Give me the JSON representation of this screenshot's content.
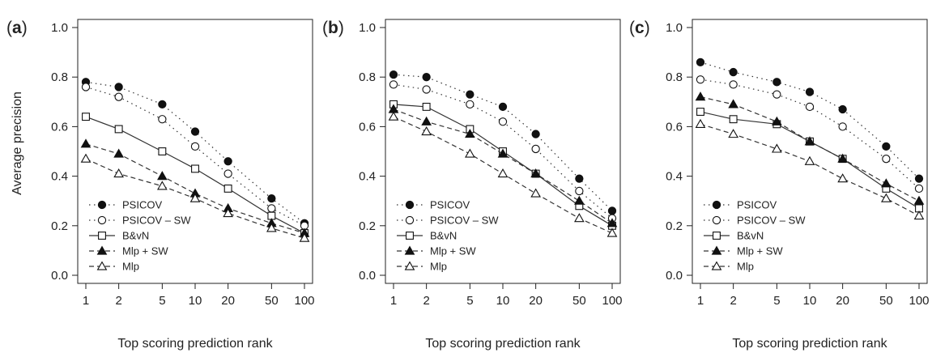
{
  "chart_data": [
    {
      "panel": "(a)",
      "panel_letter": "a",
      "type": "line",
      "x": [
        1,
        2,
        5,
        10,
        20,
        50,
        100
      ],
      "xscale": "log",
      "xlabel": "Top scoring prediction rank",
      "ylabel": "Average precision",
      "ylim": [
        0.0,
        1.0
      ],
      "yticks": [
        "0.0",
        "0.2",
        "0.4",
        "0.6",
        "0.8",
        "1.0"
      ],
      "xticks": [
        "1",
        "2",
        "5",
        "10",
        "20",
        "50",
        "100"
      ],
      "grid": false,
      "legend_position": "bottom-left",
      "series": [
        {
          "name": "PSICOV",
          "values": [
            0.78,
            0.76,
            0.69,
            0.58,
            0.46,
            0.31,
            0.21
          ]
        },
        {
          "name": "PSICOV – SW",
          "values": [
            0.76,
            0.72,
            0.63,
            0.52,
            0.41,
            0.27,
            0.2
          ]
        },
        {
          "name": "B&vN",
          "values": [
            0.64,
            0.59,
            0.5,
            0.43,
            0.35,
            0.24,
            0.17
          ]
        },
        {
          "name": "Mlp + SW",
          "values": [
            0.53,
            0.49,
            0.4,
            0.33,
            0.27,
            0.21,
            0.17
          ]
        },
        {
          "name": "Mlp",
          "values": [
            0.47,
            0.41,
            0.36,
            0.31,
            0.25,
            0.19,
            0.15
          ]
        }
      ]
    },
    {
      "panel": "(b)",
      "panel_letter": "b",
      "type": "line",
      "x": [
        1,
        2,
        5,
        10,
        20,
        50,
        100
      ],
      "xscale": "log",
      "xlabel": "Top scoring prediction rank",
      "ylabel": "",
      "ylim": [
        0.0,
        1.0
      ],
      "yticks": [
        "0.0",
        "0.2",
        "0.4",
        "0.6",
        "0.8",
        "1.0"
      ],
      "xticks": [
        "1",
        "2",
        "5",
        "10",
        "20",
        "50",
        "100"
      ],
      "grid": false,
      "legend_position": "bottom-left",
      "series": [
        {
          "name": "PSICOV",
          "values": [
            0.81,
            0.8,
            0.73,
            0.68,
            0.57,
            0.39,
            0.26
          ]
        },
        {
          "name": "PSICOV – SW",
          "values": [
            0.77,
            0.75,
            0.69,
            0.62,
            0.51,
            0.34,
            0.23
          ]
        },
        {
          "name": "B&vN",
          "values": [
            0.69,
            0.68,
            0.59,
            0.5,
            0.41,
            0.28,
            0.2
          ]
        },
        {
          "name": "Mlp + SW",
          "values": [
            0.67,
            0.62,
            0.57,
            0.49,
            0.41,
            0.3,
            0.21
          ]
        },
        {
          "name": "Mlp",
          "values": [
            0.64,
            0.58,
            0.49,
            0.41,
            0.33,
            0.23,
            0.17
          ]
        }
      ]
    },
    {
      "panel": "(c)",
      "panel_letter": "c",
      "type": "line",
      "x": [
        1,
        2,
        5,
        10,
        20,
        50,
        100
      ],
      "xscale": "log",
      "xlabel": "Top scoring prediction rank",
      "ylabel": "",
      "ylim": [
        0.0,
        1.0
      ],
      "yticks": [
        "0.0",
        "0.2",
        "0.4",
        "0.6",
        "0.8",
        "1.0"
      ],
      "xticks": [
        "1",
        "2",
        "5",
        "10",
        "20",
        "50",
        "100"
      ],
      "grid": false,
      "legend_position": "bottom-left",
      "series": [
        {
          "name": "PSICOV",
          "values": [
            0.86,
            0.82,
            0.78,
            0.74,
            0.67,
            0.52,
            0.39
          ]
        },
        {
          "name": "PSICOV – SW",
          "values": [
            0.79,
            0.77,
            0.73,
            0.68,
            0.6,
            0.47,
            0.35
          ]
        },
        {
          "name": "B&vN",
          "values": [
            0.66,
            0.63,
            0.61,
            0.54,
            0.47,
            0.35,
            0.27
          ]
        },
        {
          "name": "Mlp + SW",
          "values": [
            0.72,
            0.69,
            0.62,
            0.54,
            0.47,
            0.37,
            0.3
          ]
        },
        {
          "name": "Mlp",
          "values": [
            0.61,
            0.57,
            0.51,
            0.46,
            0.39,
            0.31,
            0.24
          ]
        }
      ]
    }
  ]
}
